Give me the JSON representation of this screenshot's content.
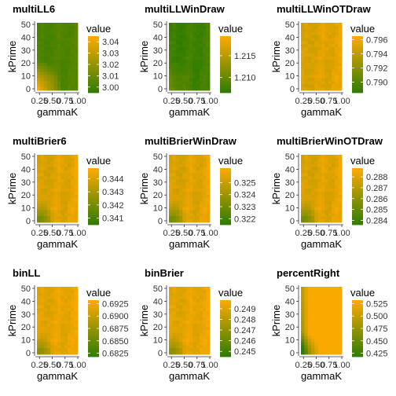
{
  "colors": {
    "low": "#2e7d00",
    "high": "#ffaa00",
    "axis": "#333333",
    "text": "#000000"
  },
  "chart_data": [
    {
      "type": "heatmap",
      "title": "multiLL6",
      "xlabel": "gammaK",
      "ylabel": "kPrime",
      "x_ticks": [
        "0.25",
        "0.50",
        "0.75",
        "1.00"
      ],
      "y_ticks": [
        "0",
        "10",
        "20",
        "30",
        "40",
        "50"
      ],
      "x_range": [
        0.2,
        1.0
      ],
      "y_range": [
        0,
        50
      ],
      "fill_range": [
        2.995,
        3.045
      ],
      "legend": {
        "title": "value",
        "ticks": [
          "3.04",
          "3.03",
          "3.02",
          "3.01",
          "3.00"
        ],
        "tick_values": [
          3.04,
          3.03,
          3.02,
          3.01,
          3.0
        ]
      },
      "pattern": {
        "base": 0.12,
        "ramp": 0.06,
        "bands": 0.03,
        "hot_corner": 0.9,
        "mottle": 0.03
      }
    },
    {
      "type": "heatmap",
      "title": "multiLLWinDraw",
      "xlabel": "gammaK",
      "ylabel": "kPrime",
      "x_ticks": [
        "0.25",
        "0.50",
        "0.75",
        "1.00"
      ],
      "y_ticks": [
        "0",
        "10",
        "20",
        "30",
        "40",
        "50"
      ],
      "x_range": [
        0.2,
        1.0
      ],
      "y_range": [
        0,
        50
      ],
      "fill_range": [
        1.2065,
        1.2195
      ],
      "legend": {
        "title": "value",
        "ticks": [
          "1.215",
          "1.210"
        ],
        "tick_values": [
          1.215,
          1.21
        ]
      },
      "pattern": {
        "base": 0.05,
        "ramp": 0.05,
        "bands": 0.04,
        "hot_corner": 0.25,
        "mottle": 0.04
      }
    },
    {
      "type": "heatmap",
      "title": "multiLLWinOTDraw",
      "xlabel": "gammaK",
      "ylabel": "kPrime",
      "x_ticks": [
        "0.25",
        "0.50",
        "0.75",
        "1.00"
      ],
      "y_ticks": [
        "0",
        "10",
        "20",
        "30",
        "40",
        "50"
      ],
      "x_range": [
        0.2,
        1.0
      ],
      "y_range": [
        0,
        50
      ],
      "fill_range": [
        0.7885,
        0.7965
      ],
      "legend": {
        "title": "value",
        "ticks": [
          "0.796",
          "0.794",
          "0.792",
          "0.790"
        ],
        "tick_values": [
          0.796,
          0.794,
          0.792,
          0.79
        ]
      },
      "pattern": {
        "base": 0.8,
        "ramp": 0.08,
        "bands": 0.04,
        "hot_corner": 0.0,
        "mottle": 0.05
      }
    },
    {
      "type": "heatmap",
      "title": "multiBrier6",
      "xlabel": "gammaK",
      "ylabel": "kPrime",
      "x_ticks": [
        "0.25",
        "0.50",
        "0.75",
        "1.00"
      ],
      "y_ticks": [
        "0",
        "10",
        "20",
        "30",
        "40",
        "50"
      ],
      "x_range": [
        0.2,
        1.0
      ],
      "y_range": [
        0,
        50
      ],
      "fill_range": [
        0.3405,
        0.3448
      ],
      "legend": {
        "title": "value",
        "ticks": [
          "0.344",
          "0.343",
          "0.342",
          "0.341"
        ],
        "tick_values": [
          0.344,
          0.343,
          0.342,
          0.341
        ]
      },
      "pattern": {
        "base": 0.8,
        "ramp": 0.08,
        "bands": 0.05,
        "hot_corner": 0.0,
        "mottle": 0.05,
        "cold_corner": 0.6
      }
    },
    {
      "type": "heatmap",
      "title": "multiBrierWinDraw",
      "xlabel": "gammaK",
      "ylabel": "kPrime",
      "x_ticks": [
        "0.25",
        "0.50",
        "0.75",
        "1.00"
      ],
      "y_ticks": [
        "0",
        "10",
        "20",
        "30",
        "40",
        "50"
      ],
      "x_range": [
        0.2,
        1.0
      ],
      "y_range": [
        0,
        50
      ],
      "fill_range": [
        0.3215,
        0.3262
      ],
      "legend": {
        "title": "value",
        "ticks": [
          "0.325",
          "0.324",
          "0.323",
          "0.322"
        ],
        "tick_values": [
          0.325,
          0.324,
          0.323,
          0.322
        ]
      },
      "pattern": {
        "base": 0.8,
        "ramp": 0.08,
        "bands": 0.05,
        "hot_corner": 0.0,
        "mottle": 0.05,
        "cold_corner": 0.6
      }
    },
    {
      "type": "heatmap",
      "title": "multiBrierWinOTDraw",
      "xlabel": "gammaK",
      "ylabel": "kPrime",
      "x_ticks": [
        "0.25",
        "0.50",
        "0.75",
        "1.00"
      ],
      "y_ticks": [
        "0",
        "10",
        "20",
        "30",
        "40",
        "50"
      ],
      "x_range": [
        0.2,
        1.0
      ],
      "y_range": [
        0,
        50
      ],
      "fill_range": [
        0.2836,
        0.2888
      ],
      "legend": {
        "title": "value",
        "ticks": [
          "0.288",
          "0.287",
          "0.286",
          "0.285",
          "0.284"
        ],
        "tick_values": [
          0.288,
          0.287,
          0.286,
          0.285,
          0.284
        ]
      },
      "pattern": {
        "base": 0.8,
        "ramp": 0.08,
        "bands": 0.05,
        "hot_corner": 0.0,
        "mottle": 0.05,
        "cold_corner": 0.6
      }
    },
    {
      "type": "heatmap",
      "title": "binLL",
      "xlabel": "gammaK",
      "ylabel": "kPrime",
      "x_ticks": [
        "0.25",
        "0.50",
        "0.75",
        "1.00"
      ],
      "y_ticks": [
        "0",
        "10",
        "20",
        "30",
        "40",
        "50"
      ],
      "x_range": [
        0.2,
        1.0
      ],
      "y_range": [
        0,
        50
      ],
      "fill_range": [
        0.6818,
        0.6932
      ],
      "legend": {
        "title": "value",
        "ticks": [
          "0.6925",
          "0.6900",
          "0.6875",
          "0.6850",
          "0.6825"
        ],
        "tick_values": [
          0.6925,
          0.69,
          0.6875,
          0.685,
          0.6825
        ]
      },
      "pattern": {
        "base": 0.85,
        "ramp": 0.06,
        "bands": 0.04,
        "hot_corner": 0.0,
        "mottle": 0.05,
        "cold_corner": 0.5
      }
    },
    {
      "type": "heatmap",
      "title": "binBrier",
      "xlabel": "gammaK",
      "ylabel": "kPrime",
      "x_ticks": [
        "0.25",
        "0.50",
        "0.75",
        "1.00"
      ],
      "y_ticks": [
        "0",
        "10",
        "20",
        "30",
        "40",
        "50"
      ],
      "x_range": [
        0.2,
        1.0
      ],
      "y_range": [
        0,
        50
      ],
      "fill_range": [
        0.2445,
        0.2498
      ],
      "legend": {
        "title": "value",
        "ticks": [
          "0.249",
          "0.248",
          "0.247",
          "0.246",
          "0.245"
        ],
        "tick_values": [
          0.249,
          0.248,
          0.247,
          0.246,
          0.245
        ]
      },
      "pattern": {
        "base": 0.85,
        "ramp": 0.06,
        "bands": 0.04,
        "hot_corner": 0.0,
        "mottle": 0.05,
        "cold_corner": 0.5
      }
    },
    {
      "type": "heatmap",
      "title": "percentRight",
      "xlabel": "gammaK",
      "ylabel": "kPrime",
      "x_ticks": [
        "0.25",
        "0.50",
        "0.75",
        "1.00"
      ],
      "y_ticks": [
        "0",
        "10",
        "20",
        "30",
        "40",
        "50"
      ],
      "x_range": [
        0.2,
        1.0
      ],
      "y_range": [
        0,
        50
      ],
      "fill_range": [
        0.418,
        0.532
      ],
      "legend": {
        "title": "value",
        "ticks": [
          "0.525",
          "0.500",
          "0.475",
          "0.450",
          "0.425"
        ],
        "tick_values": [
          0.525,
          0.5,
          0.475,
          0.45,
          0.425
        ]
      },
      "pattern": {
        "base": 0.97,
        "ramp": 0.0,
        "bands": 0.0,
        "hot_corner": 0.0,
        "mottle": 0.0,
        "cold_corner": 0.85,
        "left_strip": 0.55
      }
    }
  ]
}
